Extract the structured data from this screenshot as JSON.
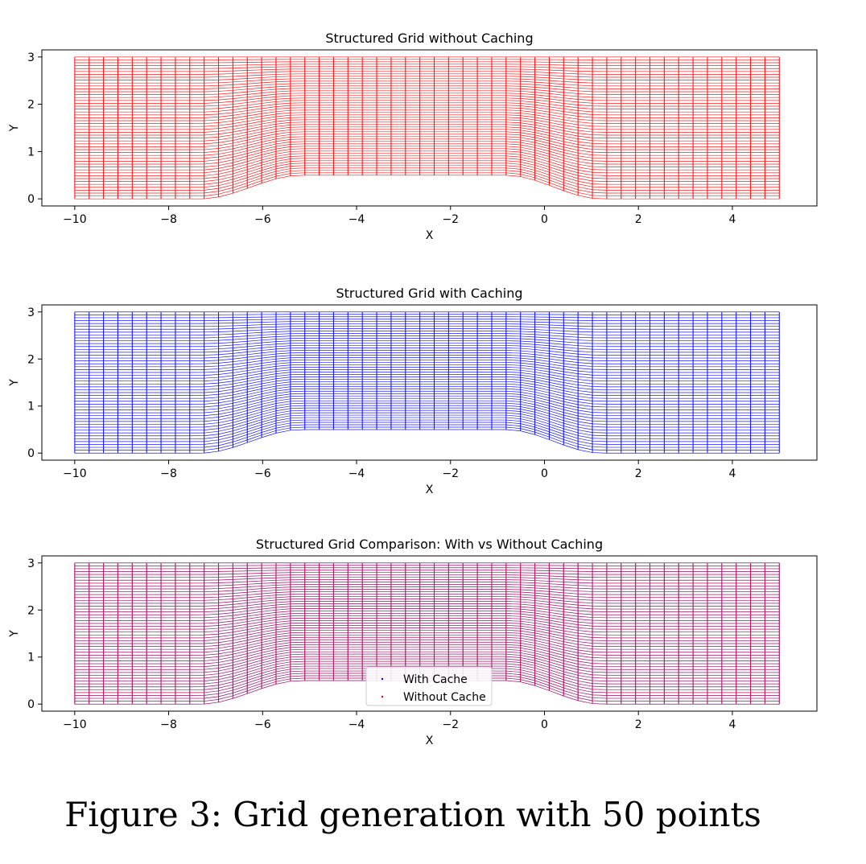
{
  "caption": "Figure 3: Grid generation with 50 points",
  "chart_data": [
    {
      "type": "scatter",
      "title": "Structured Grid without Caching",
      "xlabel": "X",
      "ylabel": "Y",
      "xlim": [
        -10.7,
        5.8
      ],
      "ylim": [
        -0.15,
        3.15
      ],
      "xticks": [
        -10,
        -8,
        -6,
        -4,
        -2,
        0,
        2,
        4
      ],
      "yticks": [
        0,
        1,
        2,
        3
      ],
      "grid": false,
      "n_points": 50,
      "x_range": [
        -10,
        5
      ],
      "y_top": 3,
      "bump": {
        "height": 0.5,
        "rise_start": -7.3,
        "rise_end": -5.2,
        "fall_start": -0.8,
        "fall_end": 1.2
      },
      "series": [
        {
          "color": "#ff0000"
        }
      ]
    },
    {
      "type": "scatter",
      "title": "Structured Grid with Caching",
      "xlabel": "X",
      "ylabel": "Y",
      "xlim": [
        -10.7,
        5.8
      ],
      "ylim": [
        -0.15,
        3.15
      ],
      "xticks": [
        -10,
        -8,
        -6,
        -4,
        -2,
        0,
        2,
        4
      ],
      "yticks": [
        0,
        1,
        2,
        3
      ],
      "grid": false,
      "n_points": 50,
      "x_range": [
        -10,
        5
      ],
      "y_top": 3,
      "bump": {
        "height": 0.5,
        "rise_start": -7.3,
        "rise_end": -5.2,
        "fall_start": -0.8,
        "fall_end": 1.2
      },
      "series": [
        {
          "color": "#0000ff"
        }
      ]
    },
    {
      "type": "scatter",
      "title": "Structured Grid Comparison: With vs Without Caching",
      "xlabel": "X",
      "ylabel": "Y",
      "xlim": [
        -10.7,
        5.8
      ],
      "ylim": [
        -0.15,
        3.15
      ],
      "xticks": [
        -10,
        -8,
        -6,
        -4,
        -2,
        0,
        2,
        4
      ],
      "yticks": [
        0,
        1,
        2,
        3
      ],
      "grid": false,
      "n_points": 50,
      "x_range": [
        -10,
        5
      ],
      "y_top": 3,
      "bump": {
        "height": 0.5,
        "rise_start": -7.3,
        "rise_end": -5.2,
        "fall_start": -0.8,
        "fall_end": 1.2
      },
      "legend": "lower-center",
      "series": [
        {
          "name": "With Cache",
          "color": "#0000ff"
        },
        {
          "name": "Without Cache",
          "color": "#ff0000"
        }
      ]
    }
  ]
}
